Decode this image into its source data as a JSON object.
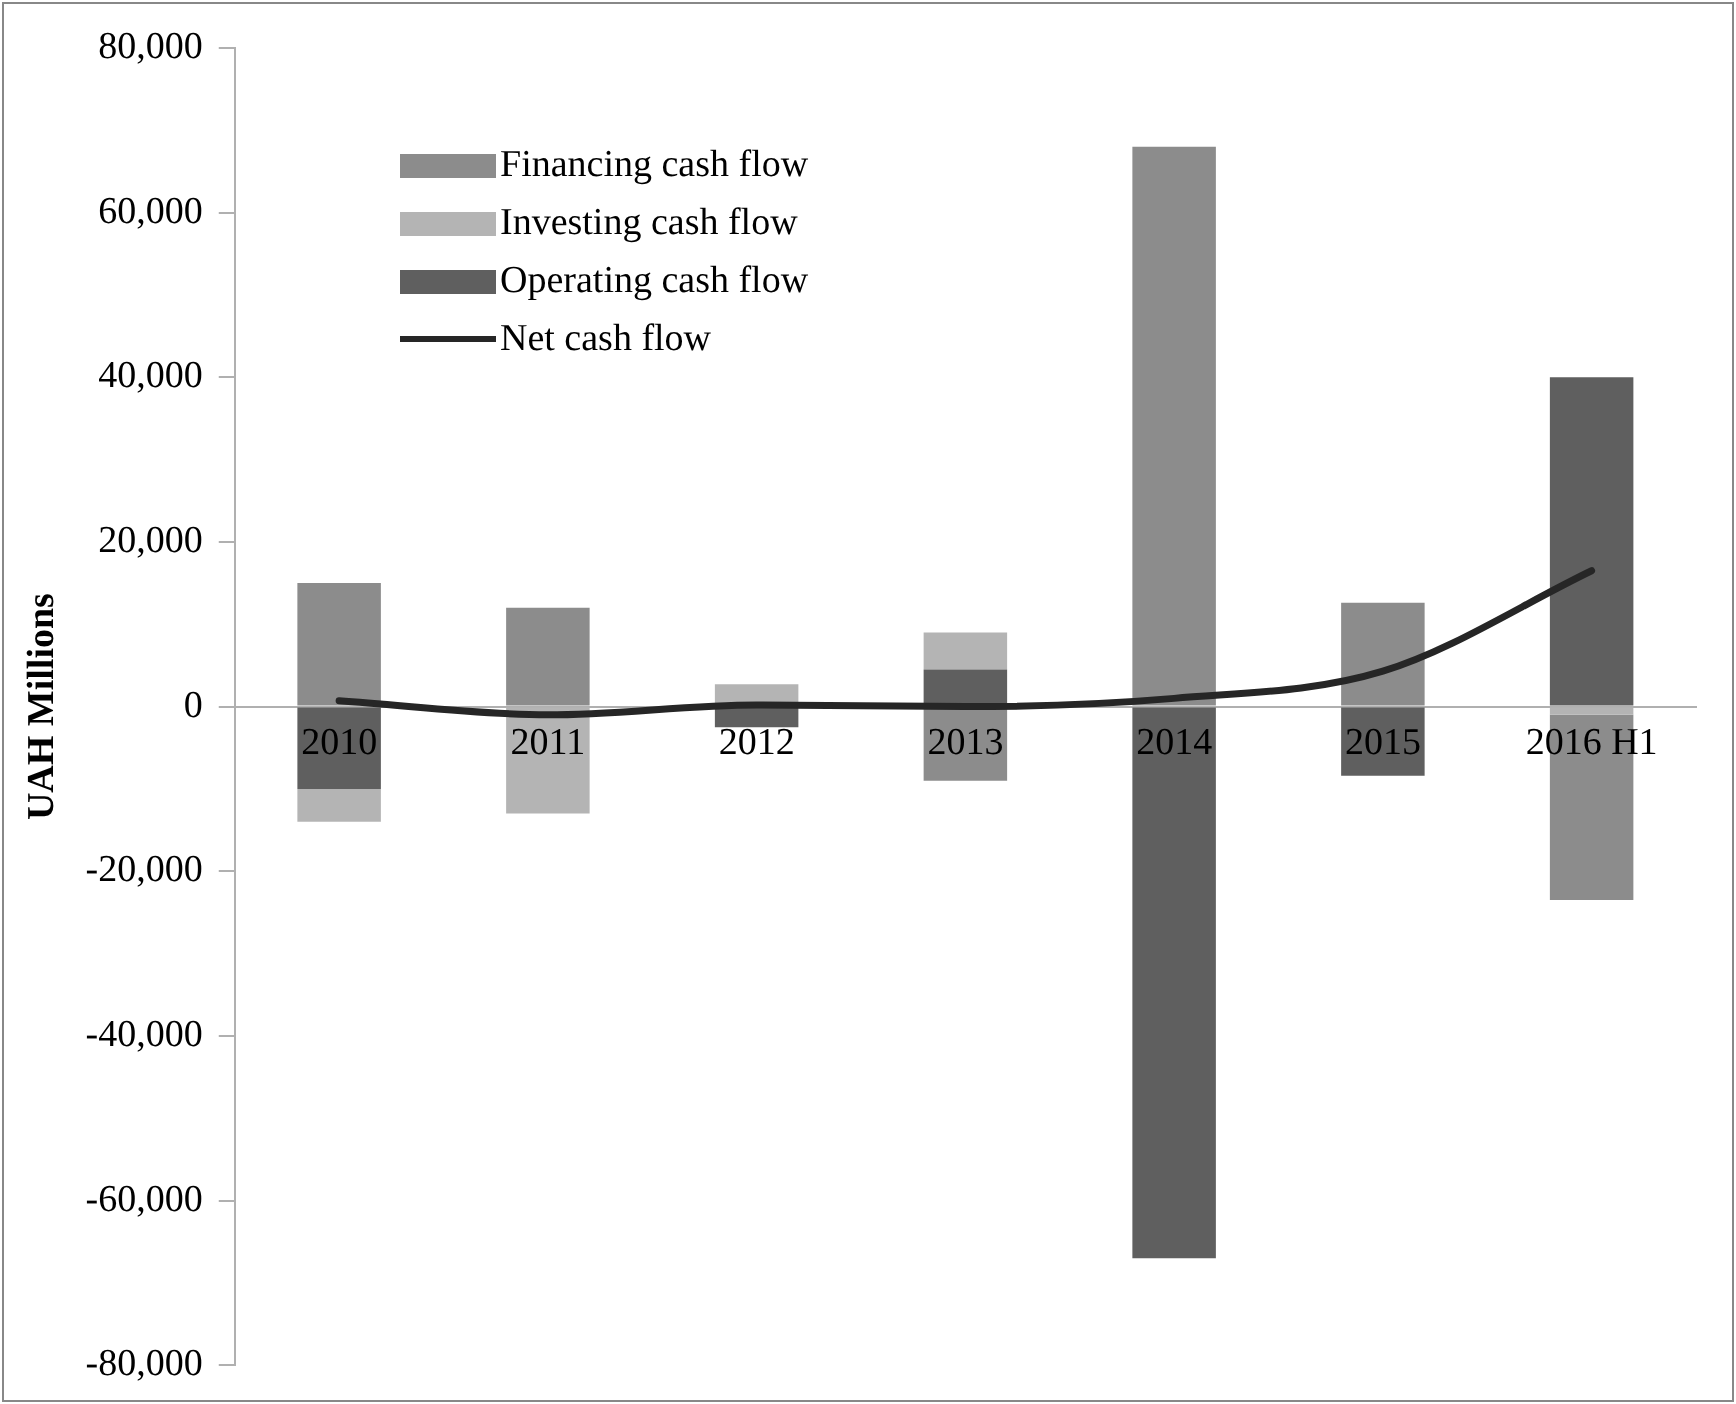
{
  "chart_data": {
    "type": "bar",
    "stacked": true,
    "ylabel": "UAH Millions",
    "categories": [
      "2010",
      "2011",
      "2012",
      "2013",
      "2014",
      "2015",
      "2016 H1"
    ],
    "series": [
      {
        "name": "Operating cash flow",
        "color": "#5f5f5f",
        "values": [
          -10000,
          0,
          -2500,
          4500,
          -67000,
          -8400,
          40000
        ]
      },
      {
        "name": "Investing cash flow",
        "color": "#b4b4b4",
        "values": [
          -4000,
          -13000,
          2700,
          4500,
          0,
          0,
          -1000
        ]
      },
      {
        "name": "Financing cash flow",
        "color": "#8c8c8c",
        "values": [
          15000,
          12000,
          0,
          -9000,
          68000,
          12600,
          -22500
        ]
      },
      {
        "name": "Net cash flow",
        "type": "line",
        "color": "#262626",
        "values": [
          700,
          -1000,
          200,
          0,
          1000,
          4300,
          16500
        ]
      }
    ],
    "ylim": [
      -80000,
      80000
    ],
    "yticks": [
      {
        "value": -80000,
        "label": "-80,000"
      },
      {
        "value": -60000,
        "label": "-60,000"
      },
      {
        "value": -40000,
        "label": "-40,000"
      },
      {
        "value": -20000,
        "label": "-20,000"
      },
      {
        "value": 0,
        "label": "0"
      },
      {
        "value": 20000,
        "label": "20,000"
      },
      {
        "value": 40000,
        "label": "40,000"
      },
      {
        "value": 60000,
        "label": "60,000"
      },
      {
        "value": 80000,
        "label": "80,000"
      }
    ],
    "grid": false,
    "legend": "top left",
    "marker": "none",
    "line_style": "solid"
  }
}
